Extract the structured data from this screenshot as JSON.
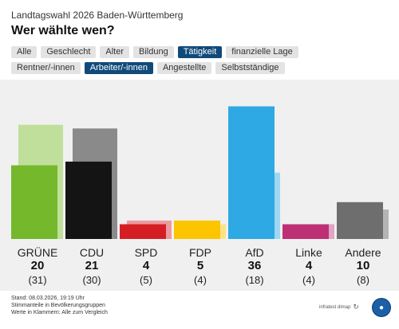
{
  "header": {
    "subtitle": "Landtagswahl 2026 Baden-Württemberg",
    "title": "Wer wählte wen?"
  },
  "tabs_row1": [
    {
      "label": "Alle",
      "active": false
    },
    {
      "label": "Geschlecht",
      "active": false
    },
    {
      "label": "Alter",
      "active": false
    },
    {
      "label": "Bildung",
      "active": false
    },
    {
      "label": "Tätigkeit",
      "active": true
    },
    {
      "label": "finanzielle Lage",
      "active": false
    }
  ],
  "tabs_row2": [
    {
      "label": "Rentner/-innen",
      "active": false
    },
    {
      "label": "Arbeiter/-innen",
      "active": true
    },
    {
      "label": "Angestellte",
      "active": false
    },
    {
      "label": "Selbstständige",
      "active": false
    }
  ],
  "chart_data": {
    "type": "bar",
    "categories": [
      "GRÜNE",
      "CDU",
      "SPD",
      "FDP",
      "AfD",
      "Linke",
      "Andere"
    ],
    "series": [
      {
        "values": [
          20,
          21,
          4,
          5,
          36,
          4,
          10
        ]
      },
      {
        "values": [
          31,
          30,
          5,
          4,
          18,
          4,
          8
        ]
      }
    ],
    "value_labels": [
      "20",
      "21",
      "4",
      "5",
      "36",
      "4",
      "10"
    ],
    "comparison_labels": [
      "(31)",
      "(30)",
      "(5)",
      "(4)",
      "(18)",
      "(4)",
      "(8)"
    ],
    "colors": [
      "#75b82b",
      "#141414",
      "#d51e24",
      "#fcc500",
      "#2ea9e3",
      "#be3075",
      "#6e6e6e"
    ],
    "comparison_colors": [
      "#c0df9a",
      "#8a8a8a",
      "#ec9a9d",
      "#fbe385",
      "#9fd7f3",
      "#e2a4c4",
      "#b4b4b4"
    ],
    "ylim": [
      0,
      40
    ]
  },
  "footer": {
    "line1": "Stand: 08.03.2026, 19:19 Uhr",
    "line2": "Stimmanteile in Bevölkerungsgruppen",
    "line3": "Werte in Klammern: Alle zum Vergleich"
  },
  "brand": {
    "text": "infratest dimap"
  },
  "icons": {
    "refresh": "refresh-icon",
    "logo": "tagesschau-logo-icon"
  }
}
